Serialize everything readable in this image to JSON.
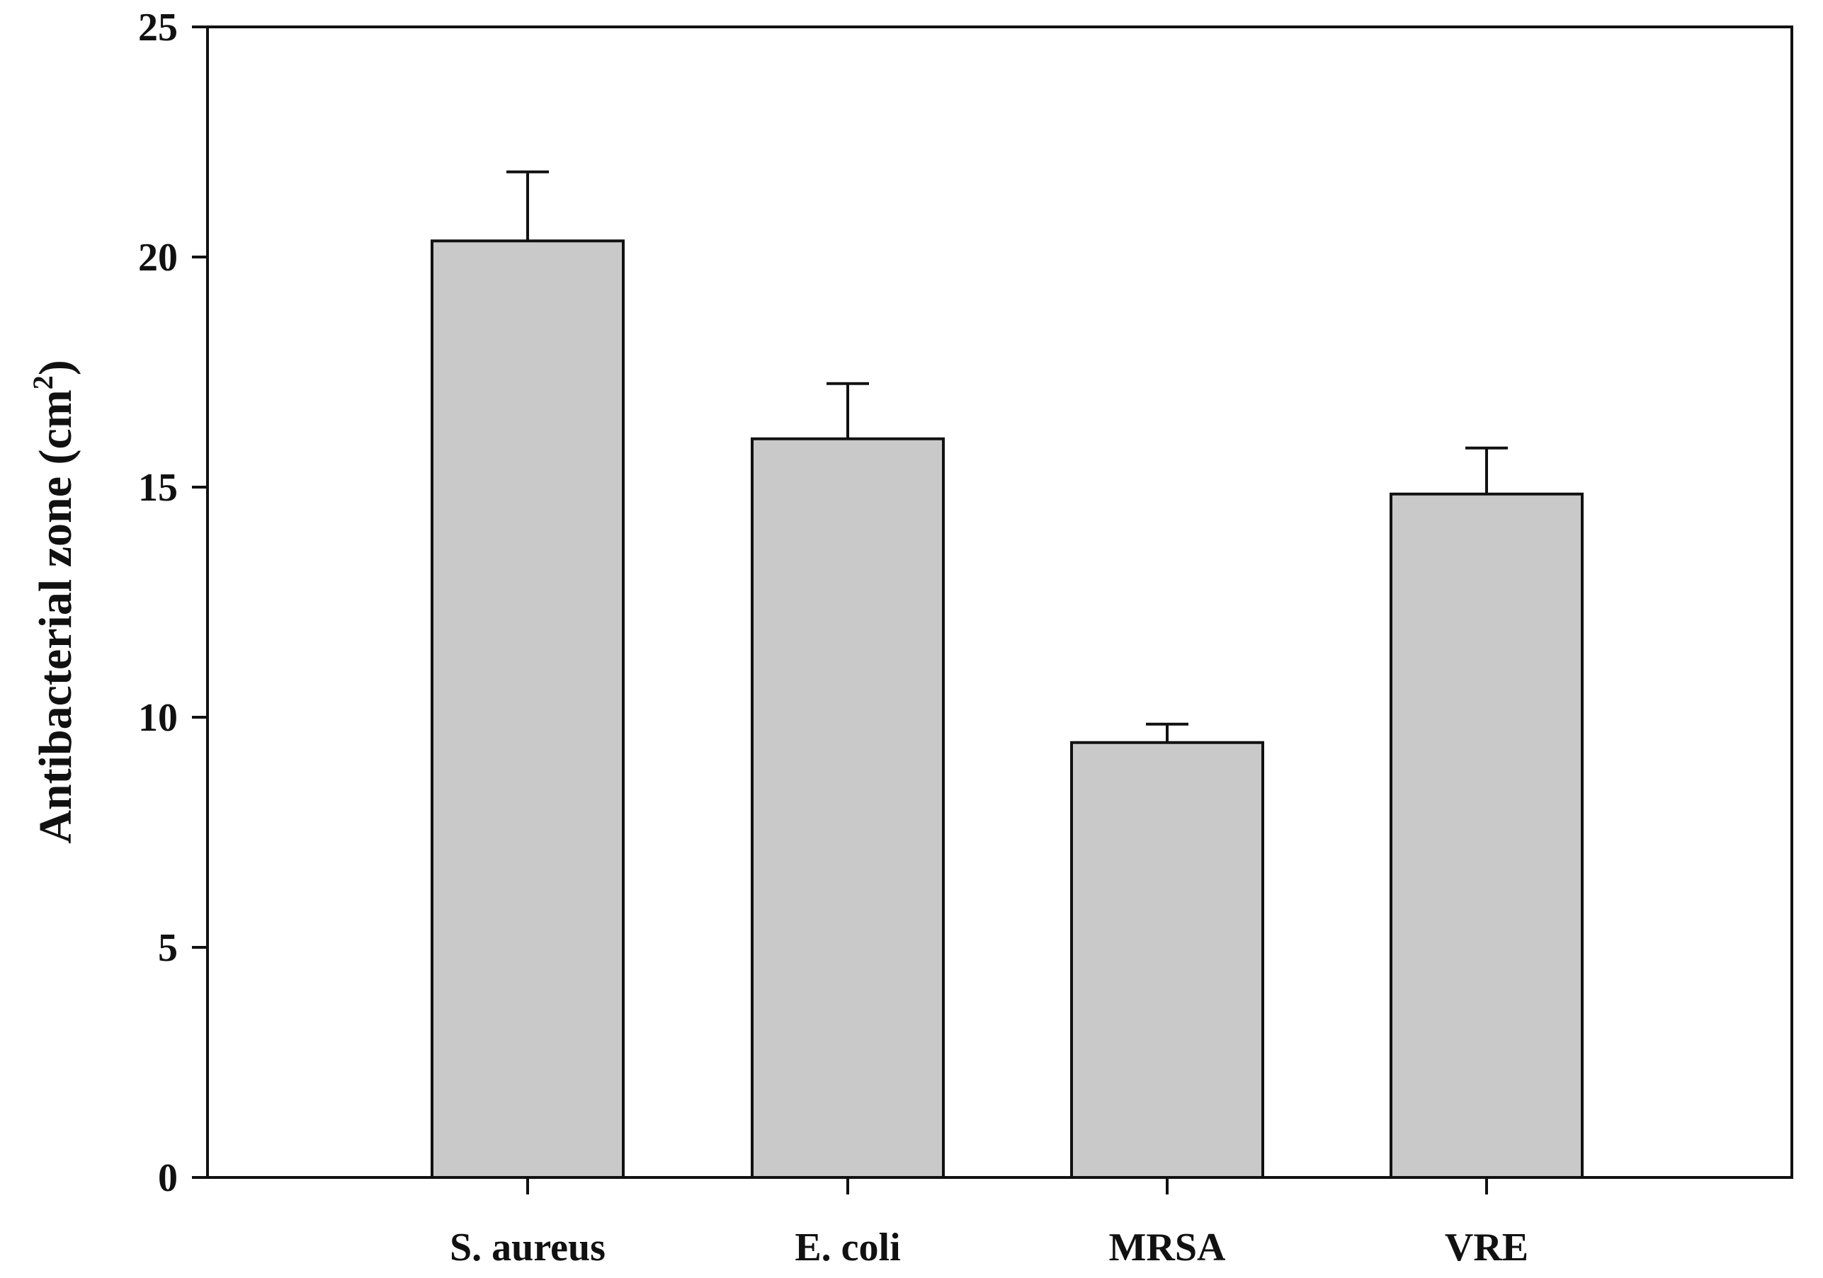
{
  "chart_data": {
    "type": "bar",
    "title": "",
    "xlabel": "",
    "ylabel": "Antibacterial zone (cm",
    "ylabel_superscript": "2",
    "ylabel_suffix": ")",
    "categories": [
      "S. aureus",
      "E. coli",
      "MRSA",
      "VRE"
    ],
    "values": [
      20.35,
      16.05,
      9.45,
      14.85
    ],
    "errors": [
      1.5,
      1.2,
      0.4,
      1.0
    ],
    "ylim": [
      0,
      25
    ],
    "yticks": [
      0,
      5,
      10,
      15,
      20,
      25
    ],
    "grid": false,
    "colors": {
      "bar_fill": "#c9c9c9",
      "bar_stroke": "#111111",
      "axis": "#111111"
    }
  }
}
